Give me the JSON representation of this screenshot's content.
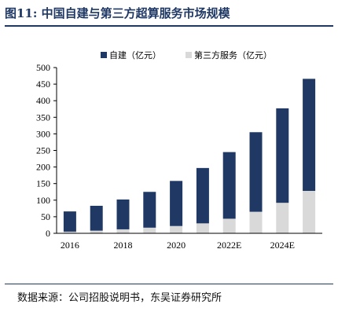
{
  "figure": {
    "title": "图11:  中国自建与第三方超算服务市场规模",
    "source": "数据来源：公司招股说明书，东吴证券研究所"
  },
  "colors": {
    "self_built": "#1f3864",
    "third_party": "#d9d9d9",
    "accent": "#1f3864"
  },
  "chart_data": {
    "type": "bar",
    "stacked": true,
    "categories": [
      "2016",
      "2017",
      "2018",
      "2019",
      "2020",
      "2021",
      "2022E",
      "2023E",
      "2024E",
      "2025E"
    ],
    "x_tick_labels": [
      "2016",
      "",
      "2018",
      "",
      "2020",
      "",
      "2022E",
      "",
      "2024E",
      ""
    ],
    "series": [
      {
        "name": "第三方服务（亿元）",
        "values": [
          5,
          8,
          12,
          17,
          22,
          30,
          44,
          65,
          92,
          128
        ]
      },
      {
        "name": "自建（亿元）",
        "values": [
          61,
          75,
          90,
          108,
          136,
          167,
          201,
          240,
          285,
          338
        ]
      }
    ],
    "legend_order": [
      "自建（亿元）",
      "第三方服务（亿元）"
    ],
    "ylim": [
      0,
      500
    ],
    "yticks": [
      0,
      50,
      100,
      150,
      200,
      250,
      300,
      350,
      400,
      450,
      500
    ],
    "grid": false,
    "legend_position": "top"
  }
}
